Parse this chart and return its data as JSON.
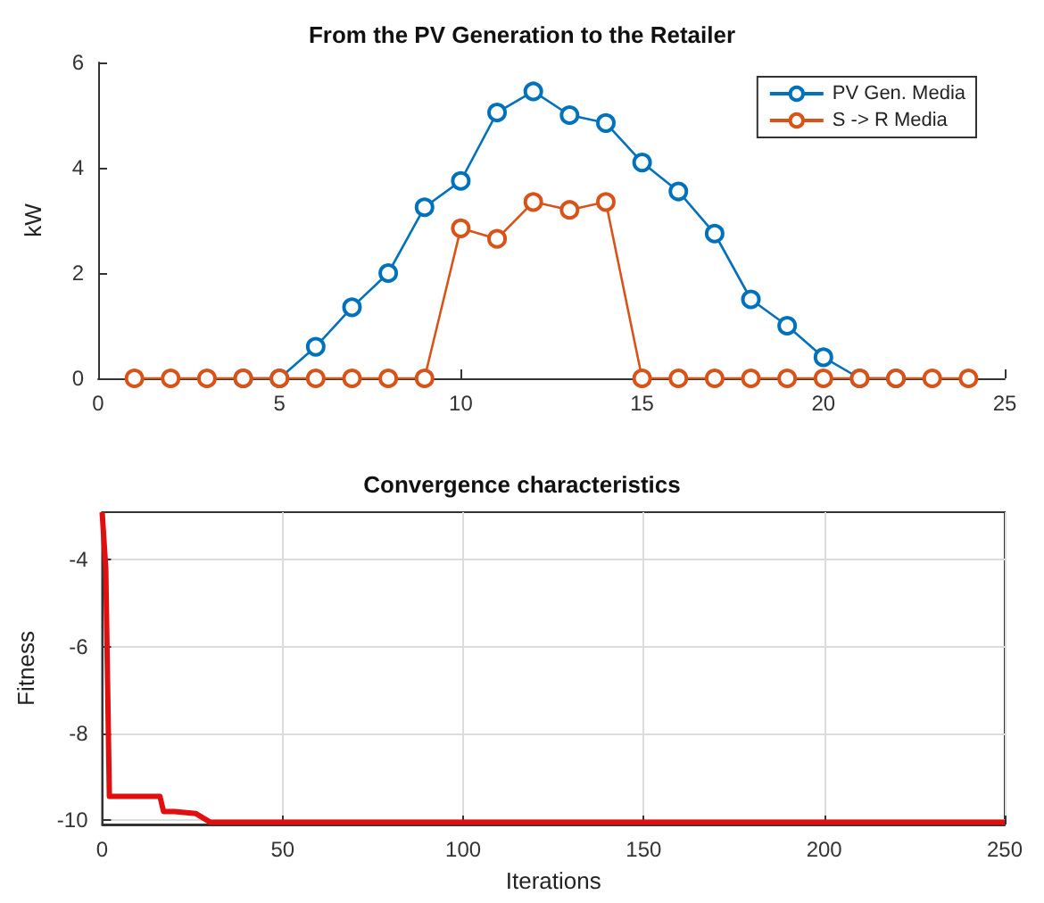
{
  "chart_data": [
    {
      "type": "line",
      "title": "From the PV Generation to the Retailer",
      "ylabel": "kW",
      "x": [
        1,
        2,
        3,
        4,
        5,
        6,
        7,
        8,
        9,
        10,
        11,
        12,
        13,
        14,
        15,
        16,
        17,
        18,
        19,
        20,
        21,
        22,
        23,
        24
      ],
      "series": [
        {
          "name": "PV Gen. Media",
          "color": "#0072bd",
          "values": [
            null,
            null,
            null,
            0,
            0,
            0.6,
            1.35,
            2.0,
            3.25,
            3.75,
            5.05,
            5.45,
            5.0,
            4.85,
            4.1,
            3.55,
            2.75,
            1.5,
            1.0,
            0.4,
            0,
            0,
            null,
            null
          ]
        },
        {
          "name": "S -> R Media",
          "color": "#d95319",
          "values": [
            0,
            0,
            0,
            0,
            0,
            0,
            0,
            0,
            0,
            2.85,
            2.65,
            3.35,
            3.2,
            3.35,
            0,
            0,
            0,
            0,
            0,
            0,
            0,
            0,
            0,
            0
          ]
        }
      ],
      "xlim": [
        0,
        25
      ],
      "xticks": [
        0,
        5,
        10,
        15,
        20,
        25
      ],
      "ylim": [
        0,
        6
      ],
      "yticks": [
        0,
        2,
        4,
        6
      ],
      "grid": false,
      "legend": "top right",
      "marker": "circle",
      "line_style": "solid"
    },
    {
      "type": "line",
      "title": "Convergence characteristics",
      "xlabel": "Iterations",
      "ylabel": "Fitness",
      "series": [
        {
          "color": "#e01010",
          "x": [
            0,
            1,
            2,
            16,
            17,
            20,
            26,
            30,
            250
          ],
          "values": [
            -2.9,
            -4.2,
            -9.45,
            -9.45,
            -9.8,
            -9.8,
            -9.85,
            -10.05,
            -10.05
          ]
        }
      ],
      "xlim": [
        0,
        250
      ],
      "xticks": [
        0,
        50,
        100,
        150,
        200,
        250
      ],
      "ylim": [
        -10.1,
        -2.9
      ],
      "yticks": [
        -10,
        -8,
        -6,
        -4
      ],
      "grid": true,
      "legend": false,
      "marker": "none",
      "line_style": "solid"
    }
  ]
}
